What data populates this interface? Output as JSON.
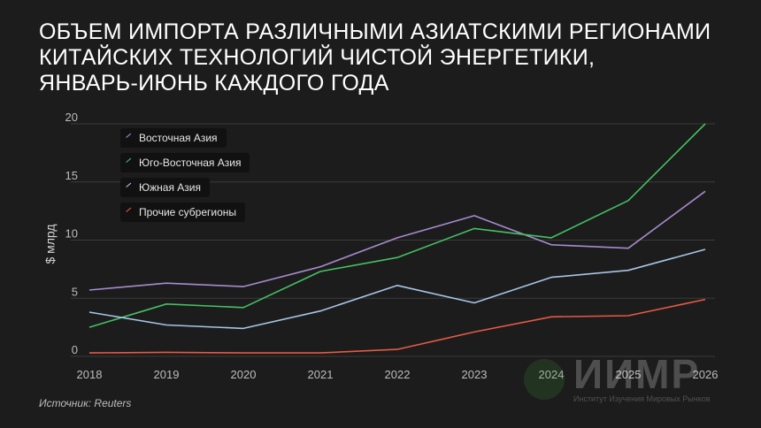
{
  "title_lines": [
    "Объем импорта различными азиатскими регионами",
    "китайских технологий чистой энергетики,",
    "январь-июнь каждого года"
  ],
  "source": "Источник: Reuters",
  "watermark": {
    "name": "ИИМР",
    "subtitle": "Институт Изучения Мировых Рынков"
  },
  "chart_data": {
    "type": "line",
    "title": "Объем импорта различными азиатскими регионами китайских технологий чистой энергетики, январь-июнь каждого года",
    "ylabel": "$ млрд",
    "xlabel": "",
    "x": [
      "2018",
      "2019",
      "2020",
      "2021",
      "2022",
      "2023",
      "2024",
      "2025",
      "2026"
    ],
    "ylim": [
      0,
      20
    ],
    "yticks": [
      0,
      5,
      10,
      15,
      20
    ],
    "grid": "horizontal",
    "legend_position": "top-left",
    "series": [
      {
        "name": "Восточная Азия",
        "color": "#a78bcf",
        "values": [
          5.7,
          6.3,
          6.0,
          7.7,
          10.2,
          12.1,
          9.6,
          9.3,
          14.2
        ]
      },
      {
        "name": "Юго-Восточная Азия",
        "color": "#45c062",
        "values": [
          2.5,
          4.5,
          4.2,
          7.3,
          8.5,
          11.0,
          10.2,
          13.4,
          20.0
        ]
      },
      {
        "name": "Южная Азия",
        "color": "#a8c4e6",
        "values": [
          3.8,
          2.7,
          2.4,
          3.9,
          6.1,
          4.6,
          6.8,
          7.4,
          9.2
        ]
      },
      {
        "name": "Прочие субрегионы",
        "color": "#e35a44",
        "values": [
          0.3,
          0.35,
          0.3,
          0.3,
          0.6,
          2.1,
          3.4,
          3.5,
          4.9
        ]
      }
    ]
  }
}
